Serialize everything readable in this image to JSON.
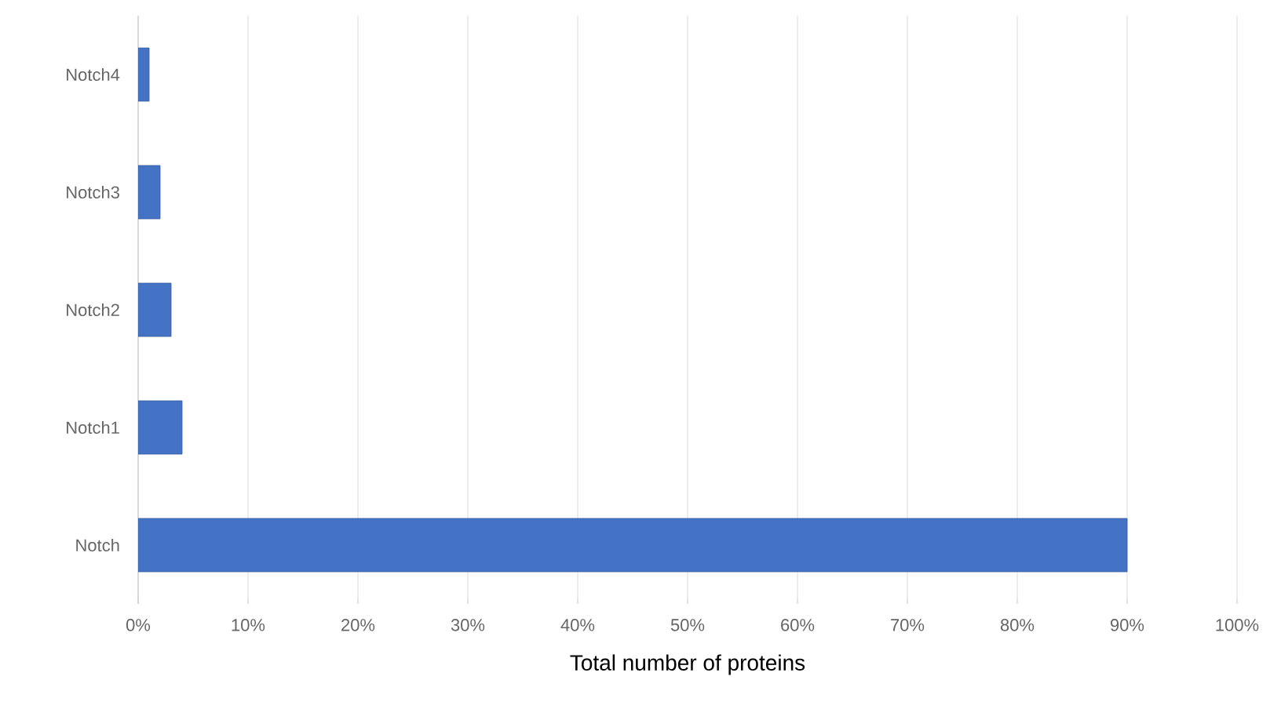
{
  "chart_data": {
    "type": "bar",
    "orientation": "horizontal",
    "xlabel": "Total number of proteins",
    "categories": [
      "Notch4",
      "Notch3",
      "Notch2",
      "Notch1",
      "Notch"
    ],
    "values": [
      1,
      2,
      3,
      4,
      90
    ],
    "color": "#4472c4",
    "xlim": [
      0,
      100
    ],
    "xticks": [
      {
        "value": 0,
        "label": "0%"
      },
      {
        "value": 10,
        "label": "10%"
      },
      {
        "value": 20,
        "label": "20%"
      },
      {
        "value": 30,
        "label": "30%"
      },
      {
        "value": 40,
        "label": "40%"
      },
      {
        "value": 50,
        "label": "50%"
      },
      {
        "value": 60,
        "label": "60%"
      },
      {
        "value": 70,
        "label": "70%"
      },
      {
        "value": 80,
        "label": "80%"
      },
      {
        "value": 90,
        "label": "90%"
      },
      {
        "value": 100,
        "label": "100%"
      }
    ],
    "grid": "x"
  }
}
